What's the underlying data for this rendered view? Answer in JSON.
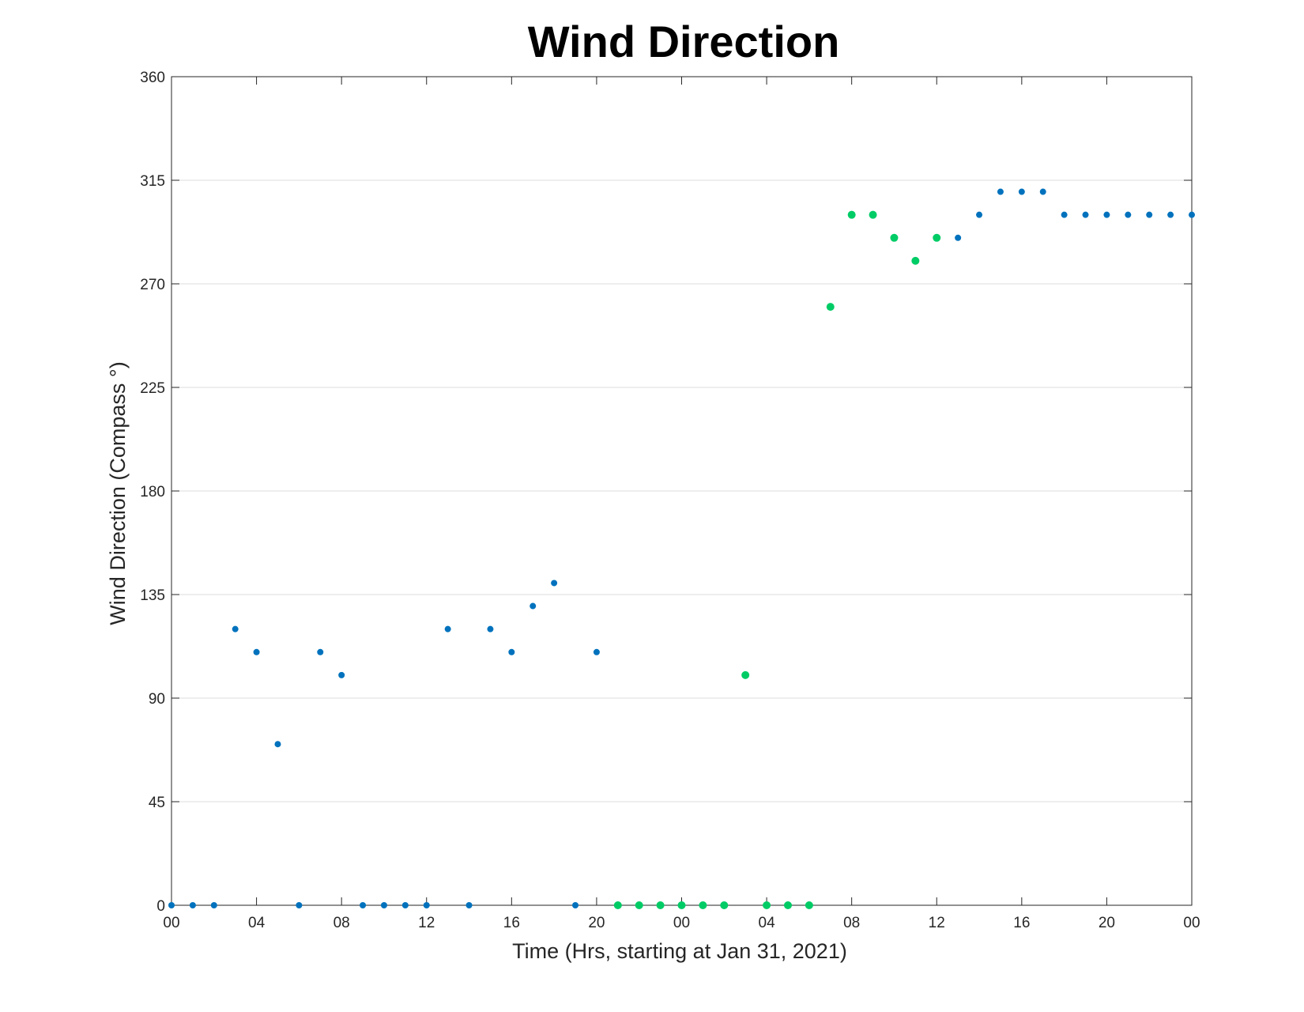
{
  "chart_data": {
    "type": "scatter",
    "title": "Wind Direction",
    "xlabel": "Time (Hrs, starting at Jan 31, 2021)",
    "ylabel": "Wind Direction (Compass °)",
    "x_unit": "datetime",
    "x_range": [
      "2021-01-31 00:00",
      "2021-02-02 00:00"
    ],
    "ylim": [
      0,
      360
    ],
    "yticks": [
      0,
      45,
      90,
      135,
      180,
      225,
      270,
      315,
      360
    ],
    "xtick_labels": [
      {
        "t": "2021-01-31 00:00",
        "label": "00"
      },
      {
        "t": "2021-01-31 04:00",
        "label": "04"
      },
      {
        "t": "2021-01-31 08:00",
        "label": "08"
      },
      {
        "t": "2021-01-31 12:00",
        "label": "12"
      },
      {
        "t": "2021-01-31 16:00",
        "label": "16"
      },
      {
        "t": "2021-01-31 20:00",
        "label": "20"
      },
      {
        "t": "2021-02-01 00:00",
        "label": "00"
      },
      {
        "t": "2021-02-01 04:00",
        "label": "04"
      },
      {
        "t": "2021-02-01 08:00",
        "label": "08"
      },
      {
        "t": "2021-02-01 12:00",
        "label": "12"
      },
      {
        "t": "2021-02-01 16:00",
        "label": "16"
      },
      {
        "t": "2021-02-01 20:00",
        "label": "20"
      },
      {
        "t": "2021-02-02 00:00",
        "label": "00"
      }
    ],
    "grid": "horizontal",
    "series": [
      {
        "color": "#0072BD",
        "points": [
          {
            "x": "2021-01-31 00:00",
            "y": 0
          },
          {
            "x": "2021-01-31 01:00",
            "y": 0
          },
          {
            "x": "2021-01-31 02:00",
            "y": 0
          },
          {
            "x": "2021-01-31 03:00",
            "y": 120
          },
          {
            "x": "2021-01-31 04:00",
            "y": 110
          },
          {
            "x": "2021-01-31 05:00",
            "y": 70
          },
          {
            "x": "2021-01-31 06:00",
            "y": 0
          },
          {
            "x": "2021-01-31 07:00",
            "y": 110
          },
          {
            "x": "2021-01-31 08:00",
            "y": 100
          },
          {
            "x": "2021-01-31 09:00",
            "y": 0
          },
          {
            "x": "2021-01-31 10:00",
            "y": 0
          },
          {
            "x": "2021-01-31 11:00",
            "y": 0
          },
          {
            "x": "2021-01-31 12:00",
            "y": 0
          },
          {
            "x": "2021-01-31 13:00",
            "y": 120
          },
          {
            "x": "2021-01-31 14:00",
            "y": 0
          },
          {
            "x": "2021-01-31 15:00",
            "y": 120
          },
          {
            "x": "2021-01-31 16:00",
            "y": 110
          },
          {
            "x": "2021-01-31 17:00",
            "y": 130
          },
          {
            "x": "2021-01-31 18:00",
            "y": 140
          },
          {
            "x": "2021-01-31 19:00",
            "y": 0
          },
          {
            "x": "2021-01-31 20:00",
            "y": 110
          },
          {
            "x": "2021-02-01 13:00",
            "y": 290
          },
          {
            "x": "2021-02-01 14:00",
            "y": 300
          },
          {
            "x": "2021-02-01 15:00",
            "y": 310
          },
          {
            "x": "2021-02-01 16:00",
            "y": 310
          },
          {
            "x": "2021-02-01 17:00",
            "y": 310
          },
          {
            "x": "2021-02-01 18:00",
            "y": 300
          },
          {
            "x": "2021-02-01 19:00",
            "y": 300
          },
          {
            "x": "2021-02-01 20:00",
            "y": 300
          },
          {
            "x": "2021-02-01 21:00",
            "y": 300
          },
          {
            "x": "2021-02-01 22:00",
            "y": 300
          },
          {
            "x": "2021-02-01 23:00",
            "y": 300
          },
          {
            "x": "2021-02-02 00:00",
            "y": 300
          }
        ]
      },
      {
        "color": "#00CC66",
        "points": [
          {
            "x": "2021-01-31 21:00",
            "y": 0
          },
          {
            "x": "2021-01-31 22:00",
            "y": 0
          },
          {
            "x": "2021-01-31 23:00",
            "y": 0
          },
          {
            "x": "2021-02-01 00:00",
            "y": 0
          },
          {
            "x": "2021-02-01 01:00",
            "y": 0
          },
          {
            "x": "2021-02-01 02:00",
            "y": 0
          },
          {
            "x": "2021-02-01 03:00",
            "y": 100
          },
          {
            "x": "2021-02-01 04:00",
            "y": 0
          },
          {
            "x": "2021-02-01 05:00",
            "y": 0
          },
          {
            "x": "2021-02-01 06:00",
            "y": 0
          },
          {
            "x": "2021-02-01 07:00",
            "y": 260
          },
          {
            "x": "2021-02-01 08:00",
            "y": 300
          },
          {
            "x": "2021-02-01 09:00",
            "y": 300
          },
          {
            "x": "2021-02-01 10:00",
            "y": 290
          },
          {
            "x": "2021-02-01 11:00",
            "y": 280
          },
          {
            "x": "2021-02-01 12:00",
            "y": 290
          }
        ]
      }
    ]
  }
}
